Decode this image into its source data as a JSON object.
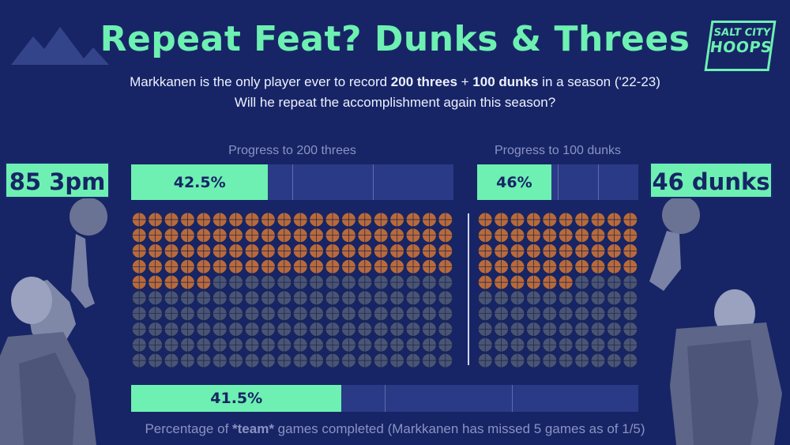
{
  "header": {
    "title": "Repeat Feat? Dunks & Threes",
    "subtitle_pre": "Markkanen is the only player ever to record ",
    "subtitle_threes": "200 threes",
    "subtitle_plus": " + ",
    "subtitle_dunks": "100 dunks",
    "subtitle_post": " in a season ('22-23)",
    "subtitle_line2": "Will he repeat the accomplishment again this season?"
  },
  "logo": {
    "line1": "SALT CITY",
    "line2": "HOOPS"
  },
  "colors": {
    "accent": "#6df0b2",
    "background": "#172566",
    "track": "#2b3a86",
    "ball_made": "#b86a3c",
    "ball_empty": "#4a5574"
  },
  "stats": {
    "threes_label": "85 3pm",
    "dunks_label": "46 dunks"
  },
  "chart_data": {
    "type": "bar",
    "bars": [
      {
        "title": "Progress to 200 threes",
        "value": 42.5,
        "label": "42.5%",
        "current": 85,
        "target": 200
      },
      {
        "title": "Progress to 100 dunks",
        "value": 46,
        "label": "46%",
        "current": 46,
        "target": 100
      },
      {
        "title": "Percentage of *team* games completed (Markkanen has missed 5 games as of 1/5)",
        "value": 41.5,
        "label": "41.5%"
      }
    ],
    "waffles": [
      {
        "name": "threes",
        "made": 85,
        "total": 200,
        "columns": 20,
        "rows": 10
      },
      {
        "name": "dunks",
        "made": 46,
        "total": 100,
        "columns": 10,
        "rows": 10
      }
    ],
    "ylim": [
      0,
      100
    ]
  },
  "footer": {
    "pre": "Percentage of ",
    "bold": "*team*",
    "post": " games completed (Markkanen has missed 5 games as of 1/5)"
  },
  "illustrations": [
    "mountains-icon",
    "player-shooting-photo",
    "player-dunking-photo"
  ]
}
